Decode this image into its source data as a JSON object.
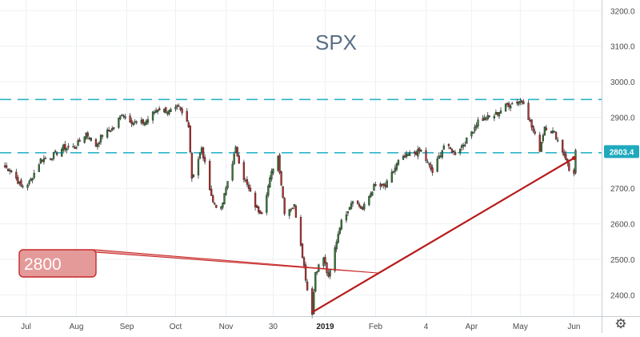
{
  "chart_data": {
    "type": "candlestick",
    "title": "SPX",
    "ylim": [
      2340,
      3230
    ],
    "y_ticks": [
      "3200.0",
      "3100.0",
      "3000.0",
      "2900.0",
      "2800.0",
      "2700.0",
      "2600.0",
      "2500.0",
      "2400.0"
    ],
    "y_tick_values": [
      3200,
      3100,
      3000,
      2900,
      2800,
      2700,
      2600,
      2500,
      2400
    ],
    "x_tick_labels": [
      {
        "label": "Jul",
        "date": "2018-07-01"
      },
      {
        "label": "Aug",
        "date": "2018-08-01"
      },
      {
        "label": "Sep",
        "date": "2018-09-01"
      },
      {
        "label": "Oct",
        "date": "2018-10-01"
      },
      {
        "label": "Nov",
        "date": "2018-11-01"
      },
      {
        "label": "30",
        "date": "2018-11-30"
      },
      {
        "label": "2019",
        "date": "2019-01-01"
      },
      {
        "label": "Feb",
        "date": "2019-02-01"
      },
      {
        "label": "4",
        "date": "2019-03-04"
      },
      {
        "label": "Apr",
        "date": "2019-04-01"
      },
      {
        "label": "May",
        "date": "2019-05-01"
      },
      {
        "label": "Jun",
        "date": "2019-06-03"
      }
    ],
    "x_range": [
      "2018-06-15",
      "2019-06-20"
    ],
    "price_label": "2803.4",
    "price_label_value": 2803.4,
    "horizontal_levels": [
      2950,
      2800
    ],
    "trendline": {
      "start": [
        "2018-12-24",
        2351
      ],
      "end": [
        "2019-06-03",
        2785
      ]
    },
    "callout": {
      "text": "2800"
    },
    "path": [
      [
        "2018-06-18",
        2760
      ],
      [
        "2018-06-22",
        2750
      ],
      [
        "2018-06-28",
        2705
      ],
      [
        "2018-07-03",
        2715
      ],
      [
        "2018-07-10",
        2780
      ],
      [
        "2018-07-17",
        2790
      ],
      [
        "2018-07-24",
        2815
      ],
      [
        "2018-07-31",
        2815
      ],
      [
        "2018-08-07",
        2855
      ],
      [
        "2018-08-13",
        2820
      ],
      [
        "2018-08-17",
        2850
      ],
      [
        "2018-08-24",
        2870
      ],
      [
        "2018-08-29",
        2910
      ],
      [
        "2018-09-05",
        2885
      ],
      [
        "2018-09-12",
        2885
      ],
      [
        "2018-09-20",
        2925
      ],
      [
        "2018-09-27",
        2915
      ],
      [
        "2018-10-03",
        2925
      ],
      [
        "2018-10-09",
        2880
      ],
      [
        "2018-10-11",
        2730
      ],
      [
        "2018-10-17",
        2810
      ],
      [
        "2018-10-24",
        2660
      ],
      [
        "2018-10-29",
        2640
      ],
      [
        "2018-11-02",
        2720
      ],
      [
        "2018-11-07",
        2810
      ],
      [
        "2018-11-12",
        2730
      ],
      [
        "2018-11-20",
        2640
      ],
      [
        "2018-11-23",
        2635
      ],
      [
        "2018-11-30",
        2760
      ],
      [
        "2018-12-03",
        2790
      ],
      [
        "2018-12-07",
        2635
      ],
      [
        "2018-12-13",
        2650
      ],
      [
        "2018-12-17",
        2545
      ],
      [
        "2018-12-21",
        2415
      ],
      [
        "2018-12-24",
        2351
      ],
      [
        "2018-12-26",
        2465
      ],
      [
        "2018-12-31",
        2505
      ],
      [
        "2019-01-03",
        2445
      ],
      [
        "2019-01-10",
        2595
      ],
      [
        "2019-01-18",
        2670
      ],
      [
        "2019-01-24",
        2640
      ],
      [
        "2019-01-31",
        2705
      ],
      [
        "2019-02-07",
        2705
      ],
      [
        "2019-02-15",
        2775
      ],
      [
        "2019-02-22",
        2795
      ],
      [
        "2019-03-01",
        2805
      ],
      [
        "2019-03-08",
        2745
      ],
      [
        "2019-03-15",
        2820
      ],
      [
        "2019-03-22",
        2800
      ],
      [
        "2019-03-29",
        2835
      ],
      [
        "2019-04-05",
        2890
      ],
      [
        "2019-04-15",
        2905
      ],
      [
        "2019-04-23",
        2935
      ],
      [
        "2019-04-30",
        2945
      ],
      [
        "2019-05-03",
        2945
      ],
      [
        "2019-05-07",
        2885
      ],
      [
        "2019-05-13",
        2810
      ],
      [
        "2019-05-16",
        2875
      ],
      [
        "2019-05-22",
        2855
      ],
      [
        "2019-05-29",
        2785
      ],
      [
        "2019-05-31",
        2750
      ],
      [
        "2019-06-03",
        2745
      ],
      [
        "2019-06-04",
        2805
      ]
    ]
  }
}
